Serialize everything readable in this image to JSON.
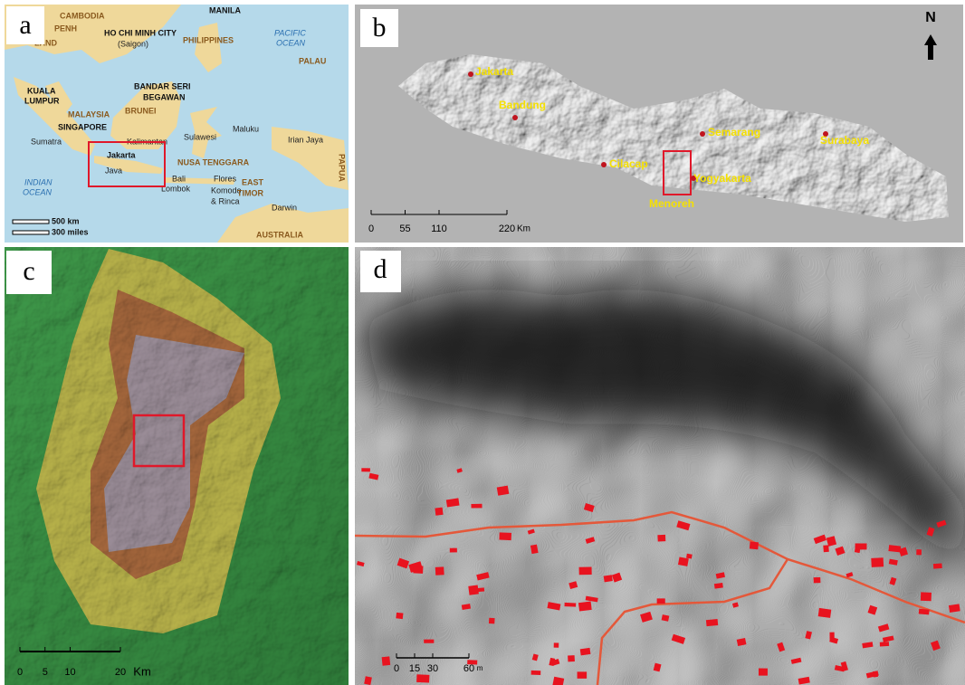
{
  "panels": {
    "a": {
      "label": "a",
      "places": [
        "CAMBODIA",
        "PENH",
        "LAND",
        "HO CHI MINH CITY",
        "(Saigon)",
        "MANILA",
        "PHILIPPINES",
        "PACIFIC",
        "OCEAN",
        "PALAU",
        "KUALA",
        "LUMPUR",
        "BANDAR SERI",
        "BEGAWAN",
        "BRUNEI",
        "MALAYSIA",
        "SINGAPORE",
        "Sumatra",
        "Kalimantan",
        "Sulawesi",
        "Maluku",
        "Irian Jaya",
        "PAPUA",
        "Jakarta",
        "Java",
        "NUSA TENGGARA",
        "Bali",
        "Lombok",
        "Flores",
        "Komodo",
        "& Rinca",
        "EAST",
        "TIMOR",
        "INDIAN",
        "OCEAN",
        "Darwin",
        "AUSTRALIA"
      ],
      "scale": [
        "500 km",
        "300 miles"
      ]
    },
    "b": {
      "label": "b",
      "north": "N",
      "cities": [
        "Jakarta",
        "Bandung",
        "Semarang",
        "Surabaya",
        "Cilacap",
        "Yogyakarta"
      ],
      "study_area": "Menoreh",
      "scale": {
        "ticks": [
          0,
          55,
          110,
          220
        ],
        "unit": "Km"
      }
    },
    "c": {
      "label": "c",
      "scale": {
        "ticks": [
          0,
          5,
          10,
          20
        ],
        "unit": "Km"
      }
    },
    "d": {
      "label": "d",
      "scale": {
        "ticks": [
          0,
          15,
          30,
          60
        ],
        "unit": "m"
      }
    }
  }
}
